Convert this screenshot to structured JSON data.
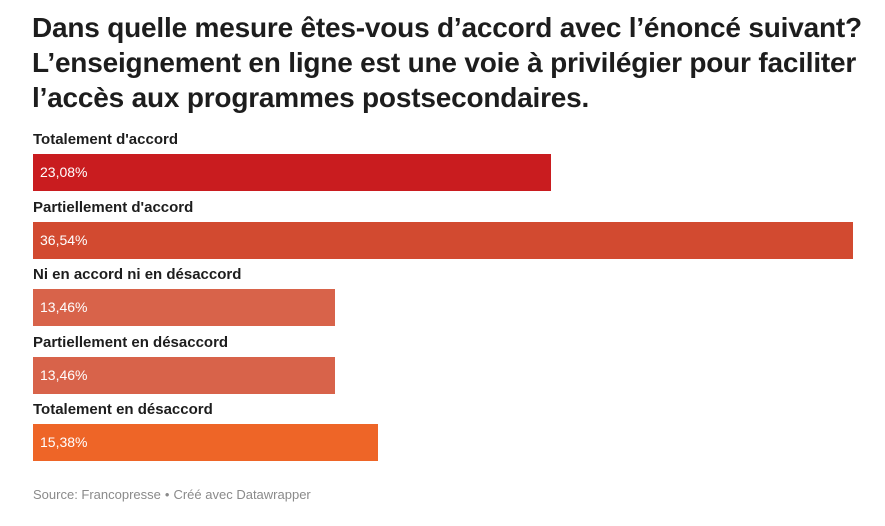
{
  "chart_data": {
    "type": "bar",
    "orientation": "horizontal",
    "title": "Dans quelle mesure êtes-vous d’accord avec l’énoncé suivant? L’enseignement en ligne est une voie à privilégier pour faciliter l’accès aux programmes postsecondaires.",
    "categories": [
      "Totalement d'accord",
      "Partiellement d'accord",
      "Ni en accord ni en désaccord",
      "Partiellement en désaccord",
      "Totalement en désaccord"
    ],
    "values": [
      23.08,
      36.54,
      13.46,
      13.46,
      15.38
    ],
    "value_labels": [
      "23,08%",
      "36,54%",
      "13,46%",
      "13,46%",
      "15,38%"
    ],
    "colors": [
      "#c91c1f",
      "#d24a30",
      "#d8634a",
      "#d8634a",
      "#ee6527"
    ],
    "xlim": [
      0,
      36.54
    ],
    "grid": false,
    "legend": "none"
  },
  "footer": {
    "source": "Source: Francopresse",
    "separator": "•",
    "credit": "Créé avec Datawrapper"
  }
}
